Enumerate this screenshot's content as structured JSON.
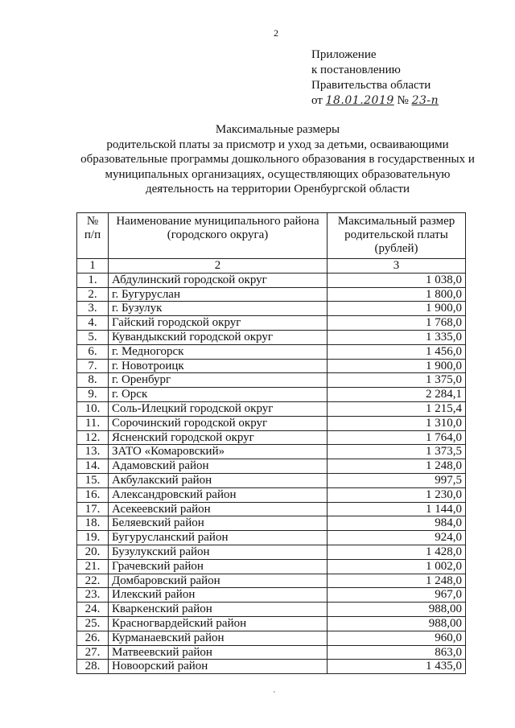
{
  "page_number": "2",
  "appendix": {
    "line1": "Приложение",
    "line2": "к постановлению",
    "line3": "Правительства области",
    "date_prefix": "от",
    "date": "18.01.2019",
    "number_sign": "№",
    "number": "23-п"
  },
  "title": {
    "line1": "Максимальные размеры",
    "line2": "родительской платы за присмотр и уход за детьми, осваивающими",
    "line3": "образовательные программы дошкольного образования в государственных и",
    "line4": "муниципальных организациях, осуществляющих образовательную",
    "line5": "деятельность на территории Оренбургской области"
  },
  "table": {
    "headers": [
      "№ п/п",
      "Наименование муниципального района (городского округа)",
      "Максимальный размер родительской платы (рублей)"
    ],
    "column_numbers": [
      "1",
      "2",
      "3"
    ],
    "rows": [
      [
        "1.",
        "Абдулинский городской округ",
        "1 038,0"
      ],
      [
        "2.",
        "г. Бугуруслан",
        "1 800,0"
      ],
      [
        "3.",
        "г. Бузулук",
        "1 900,0"
      ],
      [
        "4.",
        "Гайский городской округ",
        "1 768,0"
      ],
      [
        "5.",
        "Кувандыкский городской округ",
        "1 335,0"
      ],
      [
        "6.",
        "г. Медногорск",
        "1 456,0"
      ],
      [
        "7.",
        "г. Новотроицк",
        "1 900,0"
      ],
      [
        "8.",
        "г. Оренбург",
        "1 375,0"
      ],
      [
        "9.",
        "г. Орск",
        "2 284,1"
      ],
      [
        "10.",
        "Соль-Илецкий городской округ",
        "1 215,4"
      ],
      [
        "11.",
        "Сорочинский городской округ",
        "1 310,0"
      ],
      [
        "12.",
        "Ясненский городской округ",
        "1 764,0"
      ],
      [
        "13.",
        "ЗАТО «Комаровский»",
        "1 373,5"
      ],
      [
        "14.",
        "Адамовский район",
        "1 248,0"
      ],
      [
        "15.",
        "Акбулакский район",
        "997,5"
      ],
      [
        "16.",
        "Александровский район",
        "1 230,0"
      ],
      [
        "17.",
        "Асекеевский район",
        "1 144,0"
      ],
      [
        "18.",
        "Беляевский район",
        "984,0"
      ],
      [
        "19.",
        "Бугурусланский район",
        "924,0"
      ],
      [
        "20.",
        "Бузулукский район",
        "1 428,0"
      ],
      [
        "21.",
        "Грачевский район",
        "1 002,0"
      ],
      [
        "22.",
        "Домбаровский район",
        "1 248,0"
      ],
      [
        "23.",
        "Илекский район",
        "967,0"
      ],
      [
        "24.",
        "Кварκенский район",
        "988,00"
      ],
      [
        "25.",
        "Красногвардейский район",
        "988,00"
      ],
      [
        "26.",
        "Курманаевский район",
        "960,0"
      ],
      [
        "27.",
        "Матвеевский район",
        "863,0"
      ],
      [
        "28.",
        "Новоорский район",
        "1 435,0"
      ]
    ]
  }
}
